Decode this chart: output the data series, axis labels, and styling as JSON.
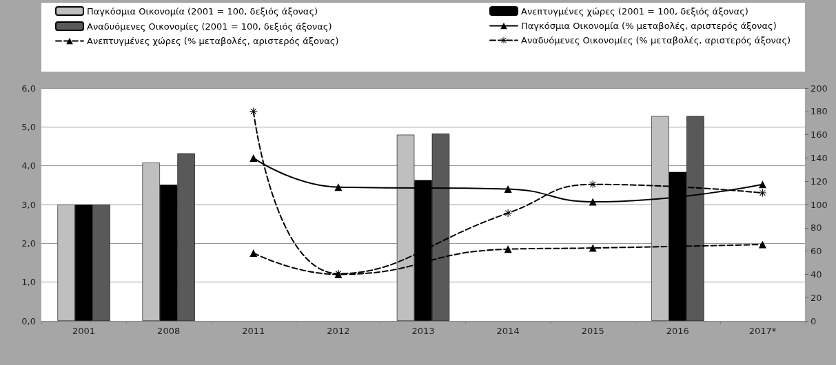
{
  "chart_data": {
    "type": "bar",
    "categories": [
      "2001",
      "2008",
      "2011",
      "2012",
      "2013",
      "2014",
      "2015",
      "2016",
      "2017*"
    ],
    "series": [
      {
        "name": "Παγκόσμια Οικονομία (2001 = 100, δεξιός άξονας)",
        "axis": "y2",
        "color": "#bfbfbf",
        "values": [
          100,
          136,
          null,
          null,
          160,
          null,
          null,
          176,
          null
        ]
      },
      {
        "name": "Ανεπτυγμένες χώρες (2001 = 100, δεξιός άξονας)",
        "axis": "y2",
        "color": "#000000",
        "values": [
          100,
          117,
          null,
          null,
          121,
          null,
          null,
          128,
          null
        ]
      },
      {
        "name": "Αναδυόμενες Οικονομίες (2001 = 100, δεξιός άξονας)",
        "axis": "y2",
        "color": "#595959",
        "values": [
          100,
          144,
          null,
          null,
          161,
          null,
          null,
          176,
          null
        ]
      },
      {
        "name": "Παγκόσμια Οικονομία (% μεταβολές, αριστερός άξονας)",
        "type": "line",
        "color": "#000000",
        "marker": "triangle",
        "line_style": "solid",
        "values": [
          null,
          null,
          4.2,
          3.45,
          null,
          3.4,
          3.07,
          null,
          3.52
        ]
      },
      {
        "name": "Ανεπτυγμένες χώρες (% μεταβολές, αριστερός άξονας)",
        "type": "line",
        "color": "#000000",
        "marker": "triangle",
        "line_style": "dashed",
        "values": [
          null,
          null,
          1.75,
          1.2,
          null,
          1.85,
          1.88,
          null,
          1.97
        ]
      },
      {
        "name": "Αναδυόμενες Οικονομίες (% μεταβολές, αριστερός άξονας)",
        "type": "line",
        "color": "#000000",
        "marker": "star",
        "line_style": "dashed",
        "values": [
          null,
          null,
          5.4,
          1.22,
          null,
          2.78,
          3.52,
          null,
          3.3
        ]
      }
    ],
    "ylim": [
      0,
      6
    ],
    "yticks": [
      {
        "value": 0,
        "label": "0,0"
      },
      {
        "value": 1,
        "label": "1,0"
      },
      {
        "value": 2,
        "label": "2,0"
      },
      {
        "value": 3,
        "label": "3,0"
      },
      {
        "value": 4,
        "label": "4,0"
      },
      {
        "value": 5,
        "label": "5,0"
      },
      {
        "value": 6,
        "label": "6,0"
      }
    ],
    "y2lim": [
      0,
      200
    ],
    "y2ticks": [
      0,
      20,
      40,
      60,
      80,
      100,
      120,
      140,
      160,
      180,
      200
    ],
    "grid": "y",
    "legend": "top"
  }
}
